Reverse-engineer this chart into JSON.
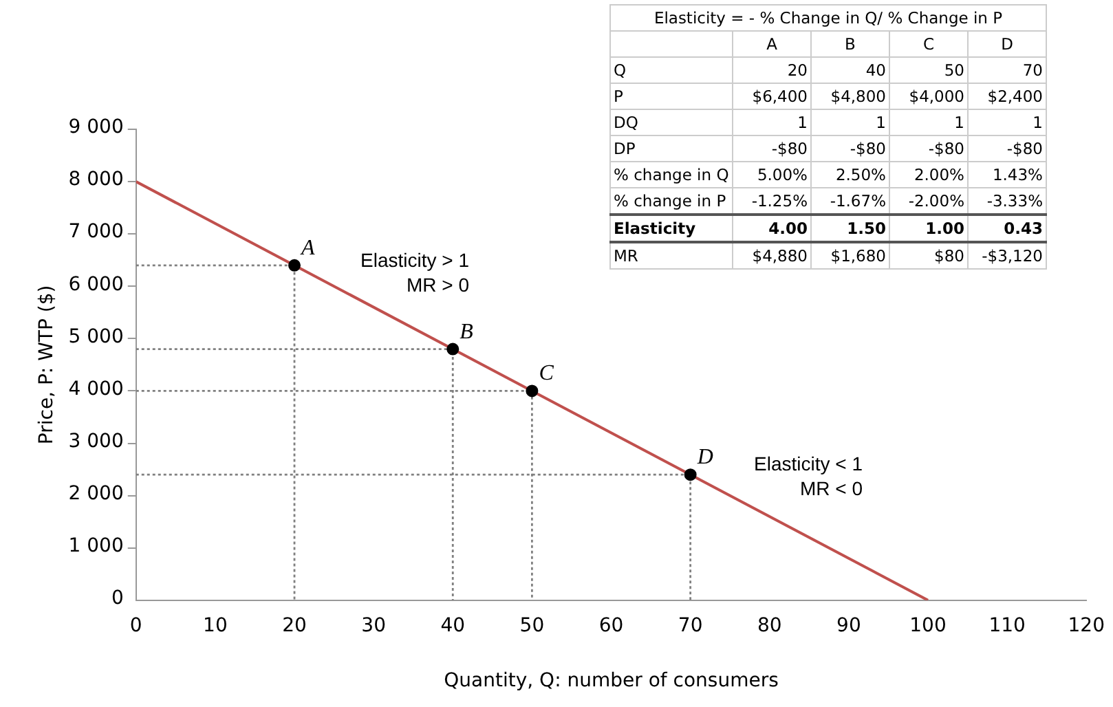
{
  "chart_data": {
    "type": "line",
    "xlabel": "Quantity, Q: number of consumers",
    "ylabel": "Price, P: WTP ($)",
    "xlim": [
      0,
      120
    ],
    "xticks": [
      0,
      10,
      20,
      30,
      40,
      50,
      60,
      70,
      80,
      90,
      100,
      110,
      120
    ],
    "ylim": [
      0,
      9000
    ],
    "yticks": [
      0,
      {
        "value": 1000,
        "label": "1 000"
      },
      {
        "value": 2000,
        "label": "2 000"
      },
      {
        "value": 3000,
        "label": "3 000"
      },
      {
        "value": 4000,
        "label": "4 000"
      },
      {
        "value": 5000,
        "label": "5 000"
      },
      {
        "value": 6000,
        "label": "6 000"
      },
      {
        "value": 7000,
        "label": "7 000"
      },
      {
        "value": 8000,
        "label": "8 000"
      },
      {
        "value": 9000,
        "label": "9 000"
      }
    ],
    "grid": false,
    "legend": false,
    "series": [
      {
        "type": "scatter",
        "color": "#000000",
        "marker": "circle",
        "x": [
          20,
          40,
          50,
          70
        ],
        "values": [
          6400,
          4800,
          4000,
          2400
        ]
      },
      {
        "type": "line",
        "color": "#c0504d",
        "line_style": "solid",
        "marker": "none",
        "x": [
          0,
          100
        ],
        "values": [
          8000,
          0
        ]
      },
      {
        "type": "line",
        "color": "#808080",
        "line_style": "dotted",
        "marker": "none",
        "x": [
          0,
          20,
          20
        ],
        "values": [
          6400,
          6400,
          0
        ]
      },
      {
        "type": "line",
        "color": "#808080",
        "line_style": "dotted",
        "marker": "none",
        "x": [
          0,
          40,
          40
        ],
        "values": [
          4800,
          4800,
          0
        ]
      },
      {
        "type": "line",
        "color": "#808080",
        "line_style": "dotted",
        "marker": "none",
        "x": [
          0,
          50,
          50
        ],
        "values": [
          4000,
          4000,
          0
        ]
      },
      {
        "type": "line",
        "color": "#808080",
        "line_style": "dotted",
        "marker": "none",
        "x": [
          0,
          70,
          70
        ],
        "values": [
          2400,
          2400,
          0
        ]
      }
    ],
    "annotations": [
      {
        "text": "A",
        "x": 20,
        "y": 6400
      },
      {
        "text": "B",
        "x": 40,
        "y": 4800
      },
      {
        "text": "C",
        "x": 50,
        "y": 4000
      },
      {
        "text": "D",
        "x": 70,
        "y": 2400
      },
      "Elasticity > 1\nMR > 0",
      "Elasticity < 1\nMR < 0",
      "Elasticity = - % Change in Q/ % Change in P",
      "A",
      "B",
      "C",
      "D",
      "Q",
      "20",
      "40",
      "50",
      "70",
      "P",
      "$6,400",
      "$4,800",
      "$4,000",
      "$2,400",
      "DQ",
      "1",
      "1",
      "1",
      "1",
      "DP",
      "-$80",
      "-$80",
      "-$80",
      "-$80",
      "% change in Q",
      "5.00%",
      "2.50%",
      "2.00%",
      "1.43%",
      "% change in P",
      "-1.25%",
      "-1.67%",
      "-2.00%",
      "-3.33%",
      "Elasticity",
      "4.00",
      "1.50",
      "1.00",
      "0.43",
      "MR",
      "$4,880",
      "$1,680",
      "$80",
      "-$3,120"
    ]
  }
}
